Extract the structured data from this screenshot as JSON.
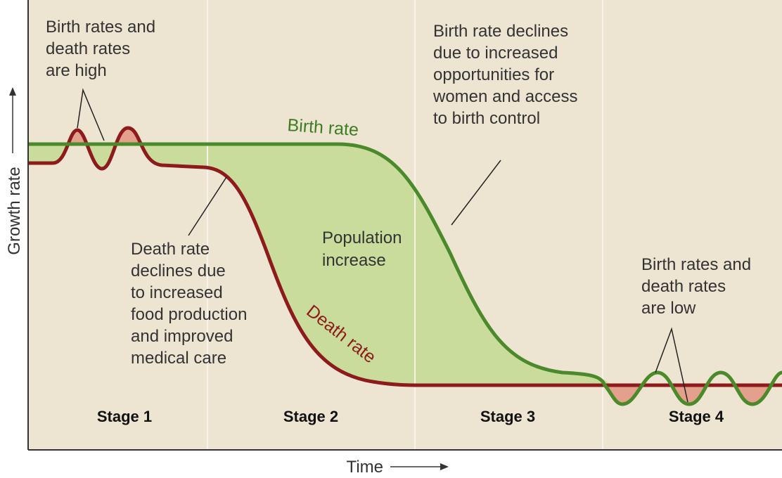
{
  "axes": {
    "y_label": "Growth rate",
    "x_label": "Time"
  },
  "curves": {
    "birth": "Birth rate",
    "death": "Death rate"
  },
  "region_label": [
    "Population",
    "increase"
  ],
  "annotations": [
    {
      "lines": [
        "Birth rates and",
        "death rates",
        "are high"
      ]
    },
    {
      "lines": [
        "Death rate",
        "declines due",
        "to increased",
        "food production",
        "and improved",
        "medical care"
      ]
    },
    {
      "lines": [
        "Birth rate declines",
        "due to increased",
        "opportunities for",
        "women and access",
        "to birth control"
      ]
    },
    {
      "lines": [
        "Birth rates and",
        "death rates",
        "are low"
      ]
    }
  ],
  "stages": [
    "Stage 1",
    "Stage 2",
    "Stage 3",
    "Stage 4"
  ]
}
